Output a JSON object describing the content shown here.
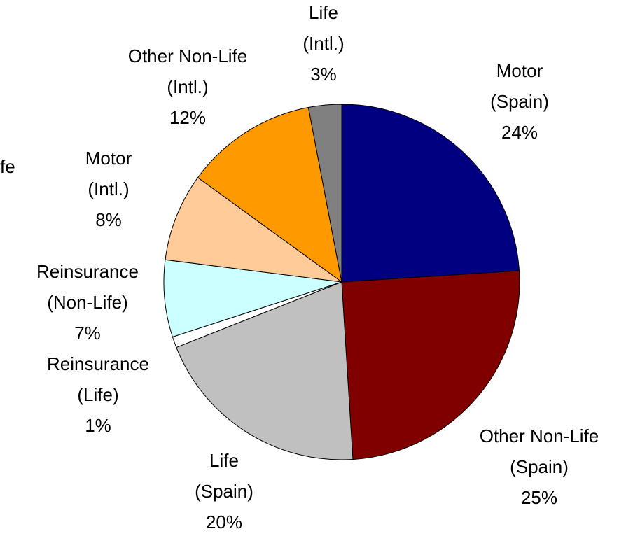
{
  "chart_data": {
    "type": "pie",
    "categories": [
      "Motor\n(Spain)",
      "Other Non-Life\n(Spain)",
      "Life\n(Spain)",
      "Reinsurance\n(Life)",
      "Reinsurance\n(Non-Life)",
      "Motor\n(Intl.)",
      "Other Non-Life\n(Intl.)",
      "Life\n(Intl.)"
    ],
    "values": [
      24,
      25,
      20,
      1,
      7,
      8,
      12,
      3
    ],
    "value_labels": [
      "24%",
      "25%",
      "20%",
      "1%",
      "7%",
      "8%",
      "12%",
      "3%"
    ],
    "colors": [
      "#000080",
      "#800000",
      "#c0c0c0",
      "#ffffff",
      "#ccffff",
      "#ffcc99",
      "#ff9900",
      "#808080"
    ],
    "annotations": [
      "fe"
    ]
  }
}
